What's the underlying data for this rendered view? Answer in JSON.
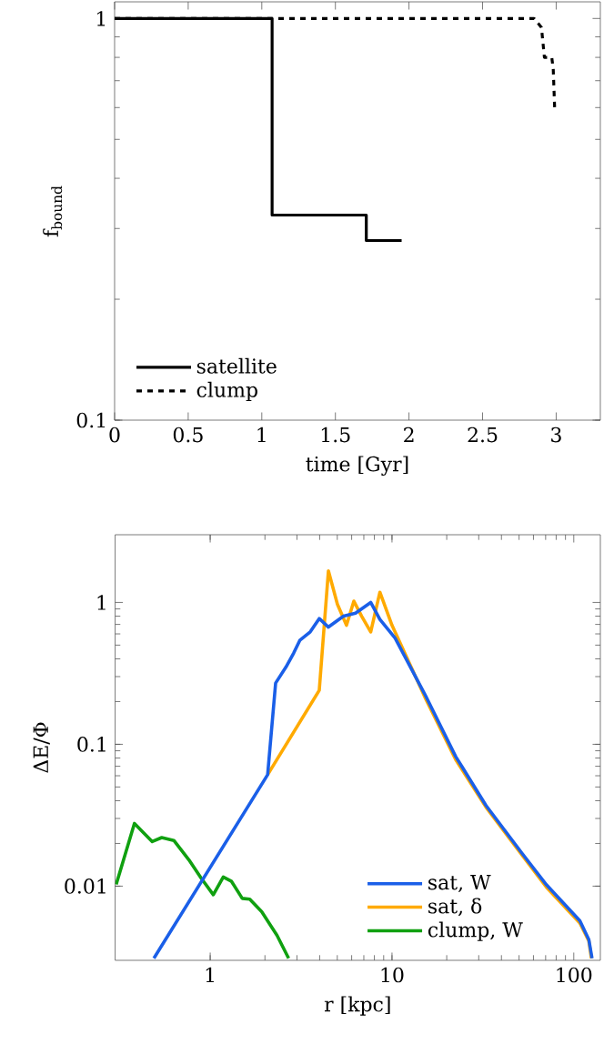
{
  "chart_data": [
    {
      "type": "line",
      "xlabel": "time [Gyr]",
      "ylabel": "f$_{bound}$",
      "xlim": [
        0,
        3.3
      ],
      "ylim": [
        0.1,
        1.1
      ],
      "xticks": [
        0,
        0.5,
        1,
        1.5,
        2,
        2.5,
        3
      ],
      "yticks": [
        0.1,
        1
      ],
      "log": "y",
      "legend": "bottom left",
      "series": [
        {
          "name": "satellite",
          "type": "step",
          "color": "#000000",
          "line_style": "solid",
          "x": [
            0,
            1.07,
            1.71,
            1.95
          ],
          "values": [
            1,
            0.324,
            0.28,
            0.28
          ]
        },
        {
          "name": "clump",
          "type": "line",
          "color": "#000000",
          "line_style": "dashed",
          "x": [
            0,
            2.85,
            2.9,
            2.92,
            2.97,
            2.98,
            2.99
          ],
          "values": [
            1,
            1,
            0.95,
            0.8,
            0.8,
            0.75,
            0.594
          ]
        }
      ]
    },
    {
      "type": "line",
      "xlabel": "r [kpc]",
      "ylabel": "ΔE/Φ",
      "xlim": [
        0.3,
        140
      ],
      "ylim": [
        0.003,
        3
      ],
      "xticks": [
        1,
        10,
        100
      ],
      "yticks": [
        0.01,
        0.1,
        1
      ],
      "log": "xy",
      "legend": "bottom right",
      "series": [
        {
          "name": "sat, W",
          "color": "#1a5fe8",
          "line_style": "solid",
          "x": [
            0.49,
            2.07,
            2.29,
            2.61,
            2.88,
            3.11,
            3.55,
            3.98,
            4.47,
            5.41,
            6.3,
            7.64,
            8.58,
            10.4,
            15.3,
            22.4,
            32.9,
            52,
            70.8,
            108,
            121,
            126
          ],
          "values": [
            0.0031,
            0.061,
            0.27,
            0.35,
            0.44,
            0.54,
            0.62,
            0.77,
            0.67,
            0.8,
            0.84,
            1.0,
            0.76,
            0.56,
            0.22,
            0.082,
            0.037,
            0.017,
            0.0102,
            0.0057,
            0.0042,
            0.0031
          ]
        },
        {
          "name": "sat, δ",
          "color": "#ffaa00",
          "line_style": "solid",
          "x": [
            2.07,
            3.98,
            4.47,
            5.01,
            5.62,
            6.17,
            6.81,
            7.64,
            8.58,
            10,
            15.3,
            22.4,
            32.9,
            52,
            70.8,
            108,
            121,
            125
          ],
          "values": [
            0.061,
            0.24,
            1.67,
            0.97,
            0.69,
            1.02,
            0.8,
            0.62,
            1.18,
            0.69,
            0.21,
            0.078,
            0.036,
            0.0165,
            0.0098,
            0.0055,
            0.0041,
            0.0031
          ]
        },
        {
          "name": "clump, W",
          "color": "#10a010",
          "line_style": "solid",
          "x": [
            0.304,
            0.383,
            0.48,
            0.541,
            0.631,
            0.764,
            0.891,
            1.04,
            1.18,
            1.31,
            1.5,
            1.65,
            1.92,
            2.33,
            2.7
          ],
          "values": [
            0.0103,
            0.0277,
            0.0206,
            0.022,
            0.021,
            0.0153,
            0.0114,
            0.0087,
            0.0116,
            0.0108,
            0.0082,
            0.0081,
            0.0066,
            0.0045,
            0.0031
          ]
        }
      ]
    }
  ]
}
